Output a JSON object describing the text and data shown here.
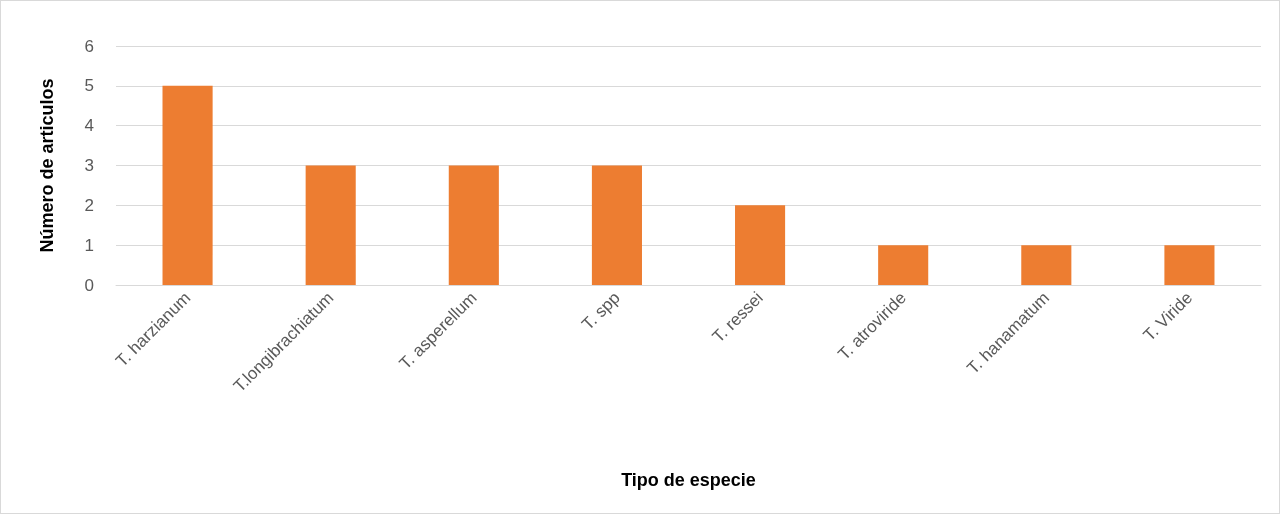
{
  "chart_data": {
    "type": "bar",
    "xlabel": "Tipo de especie",
    "ylabel": "Número de articulos",
    "categories": [
      "T. harzianum",
      "T.longibrachiatum",
      "T. asperellum",
      "T. spp",
      "T. ressei",
      "T. atroviride",
      "T. hanamatum",
      "T. Viride"
    ],
    "values": [
      5,
      3,
      3,
      3,
      2,
      1,
      1,
      1
    ],
    "color": "#ed7d31",
    "ylim": [
      0,
      6
    ],
    "yticks": [
      0,
      1,
      2,
      3,
      4,
      5,
      6
    ],
    "grid": "y"
  }
}
